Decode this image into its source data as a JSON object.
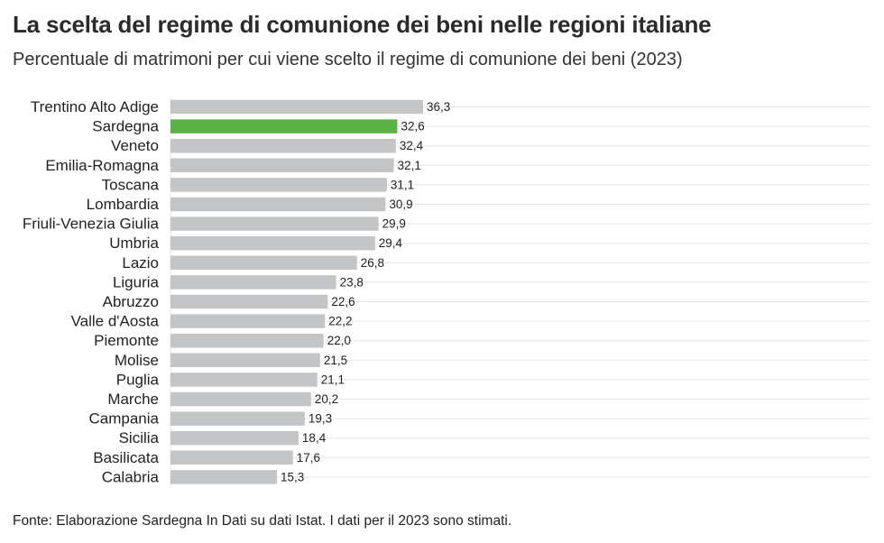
{
  "title": "La scelta del regime di comunione dei beni nelle regioni italiane",
  "subtitle": "Percentuale di matrimoni per cui viene scelto il regime di comunione dei beni (2023)",
  "source": "Fonte: Elaborazione Sardegna In Dati su dati Istat. I dati per il 2023 sono stimati.",
  "colors": {
    "bar": "#c3c5c7",
    "highlight": "#5cb247",
    "grid": "#e6e6e6",
    "text": "#222222"
  },
  "chart_data": {
    "type": "bar",
    "orientation": "horizontal",
    "categories": [
      "Trentino Alto Adige",
      "Sardegna",
      "Veneto",
      "Emilia-Romagna",
      "Toscana",
      "Lombardia",
      "Friuli-Venezia Giulia",
      "Umbria",
      "Lazio",
      "Liguria",
      "Abruzzo",
      "Valle d'Aosta",
      "Piemonte",
      "Molise",
      "Puglia",
      "Marche",
      "Campania",
      "Sicilia",
      "Basilicata",
      "Calabria"
    ],
    "values": [
      36.3,
      32.6,
      32.4,
      32.1,
      31.1,
      30.9,
      29.9,
      29.4,
      26.8,
      23.8,
      22.6,
      22.2,
      22.0,
      21.5,
      21.1,
      20.2,
      19.3,
      18.4,
      17.6,
      15.3
    ],
    "value_labels": [
      "36,3",
      "32,6",
      "32,4",
      "32,1",
      "31,1",
      "30,9",
      "29,9",
      "29,4",
      "26,8",
      "23,8",
      "22,6",
      "22,2",
      "22,0",
      "21,5",
      "21,1",
      "20,2",
      "19,3",
      "18,4",
      "17,6",
      "15,3"
    ],
    "highlight": "Sardegna",
    "xlim": [
      0,
      36.3
    ],
    "grid": true,
    "legend": "none"
  }
}
